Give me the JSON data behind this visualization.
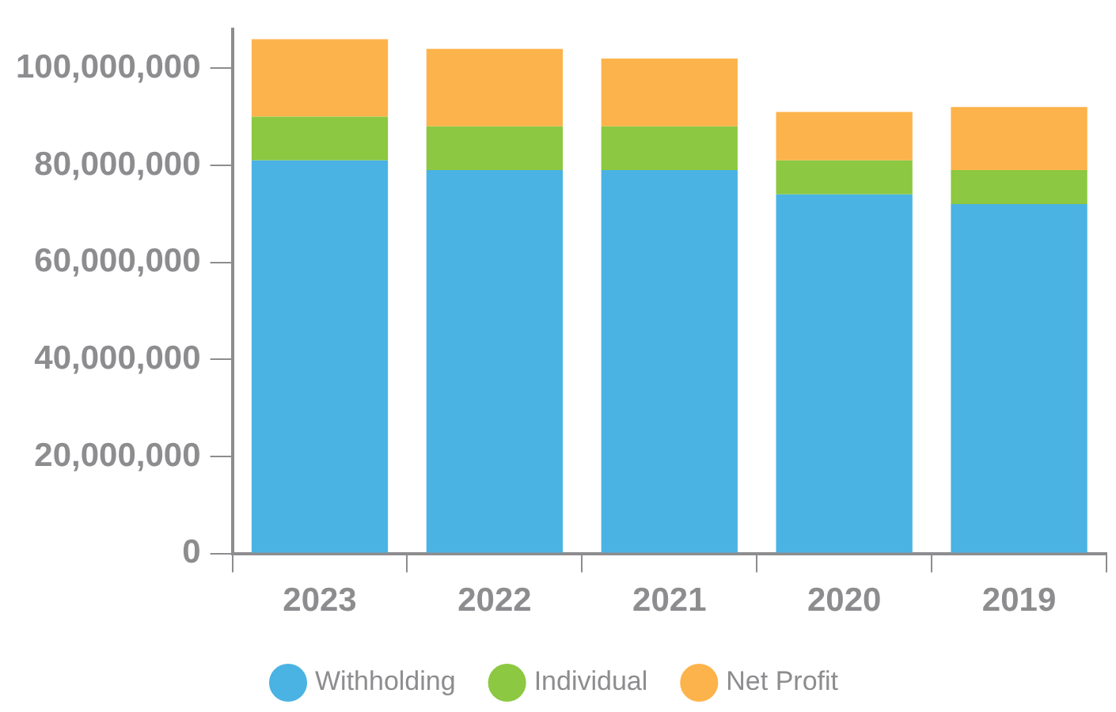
{
  "chart_data": {
    "type": "bar",
    "stacked": true,
    "categories": [
      "2023",
      "2022",
      "2021",
      "2020",
      "2019"
    ],
    "series": [
      {
        "name": "Withholding",
        "color": "#4ab3e3",
        "values": [
          81000000,
          79000000,
          79000000,
          74000000,
          72000000
        ]
      },
      {
        "name": "Individual",
        "color": "#8cc841",
        "values": [
          9000000,
          9000000,
          9000000,
          7000000,
          7000000
        ]
      },
      {
        "name": "Net Profit",
        "color": "#fdb34b",
        "values": [
          16000000,
          16000000,
          14000000,
          10000000,
          13000000
        ]
      }
    ],
    "ylim": [
      0,
      108000000
    ],
    "yticks": [
      0,
      {
        "value": 20000000,
        "label": "20,000,000"
      },
      {
        "value": 40000000,
        "label": "40,000,000"
      },
      {
        "value": 60000000,
        "label": "60,000,000"
      },
      {
        "value": 80000000,
        "label": "80,000,000"
      },
      {
        "value": 100000000,
        "label": "100,000,000"
      }
    ],
    "grid": false,
    "legend": "bottom",
    "marker": "circle"
  }
}
